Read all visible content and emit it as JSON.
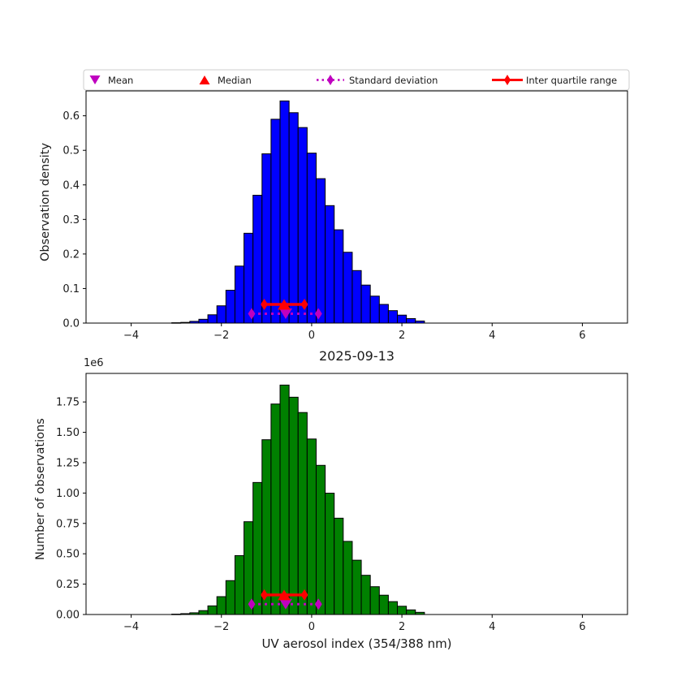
{
  "figure": {
    "background": "#ffffff"
  },
  "colors": {
    "blue": "#0000FF",
    "green": "#008000",
    "red": "#FF0000",
    "magenta": "#BF00BF",
    "bar_edge": "#000000",
    "legend_border": "#cccccc"
  },
  "legend": {
    "position": "top",
    "items": [
      {
        "label": "Mean",
        "marker": "triangle-down",
        "color": "#BF00BF",
        "line": "none"
      },
      {
        "label": "Median",
        "marker": "triangle-up",
        "color": "#FF0000",
        "line": "none"
      },
      {
        "label": "Standard deviation",
        "marker": "thin-diamond",
        "color": "#BF00BF",
        "line": "dotted"
      },
      {
        "label": "Inter quartile range",
        "marker": "thin-diamond",
        "color": "#FF0000",
        "line": "solid"
      }
    ]
  },
  "chart_data": [
    {
      "type": "bar",
      "subtype": "histogram",
      "ylabel": "Observation density",
      "bar_color": "#0000FF",
      "bar_edge_color": "#000000",
      "grid": false,
      "bin_width": 0.2,
      "bin_centers": [
        -3.0,
        -2.8,
        -2.6,
        -2.4,
        -2.2,
        -2.0,
        -1.8,
        -1.6,
        -1.4,
        -1.2,
        -1.0,
        -0.8,
        -0.6,
        -0.4,
        -0.2,
        0.0,
        0.2,
        0.4,
        0.6,
        0.8,
        1.0,
        1.2,
        1.4,
        1.6,
        1.8,
        2.0,
        2.2,
        2.4
      ],
      "values": [
        0.001,
        0.002,
        0.005,
        0.011,
        0.024,
        0.05,
        0.095,
        0.165,
        0.26,
        0.37,
        0.49,
        0.59,
        0.643,
        0.609,
        0.566,
        0.492,
        0.418,
        0.34,
        0.27,
        0.205,
        0.152,
        0.11,
        0.078,
        0.054,
        0.036,
        0.023,
        0.013,
        0.006
      ],
      "xlim": [
        -5,
        7
      ],
      "ylim": [
        0,
        0.672
      ],
      "xticks": [
        -4,
        -2,
        0,
        2,
        4,
        6
      ],
      "xtick_labels": [
        "−4",
        "−2",
        "0",
        "2",
        "4",
        "6"
      ],
      "yticks": [
        0.0,
        0.1,
        0.2,
        0.3,
        0.4,
        0.5,
        0.6
      ],
      "ytick_labels": [
        "0.0",
        "0.1",
        "0.2",
        "0.3",
        "0.4",
        "0.5",
        "0.6"
      ],
      "markers": {
        "mean": {
          "x": -0.575,
          "y": 0.027
        },
        "median": {
          "x": -0.61,
          "y": 0.054
        },
        "std_range": {
          "x_from": -1.33,
          "x_to": 0.15,
          "y": 0.027
        },
        "iqr_range": {
          "x_from": -1.05,
          "x_to": -0.16,
          "y": 0.054
        }
      }
    },
    {
      "type": "bar",
      "subtype": "histogram",
      "title": "2025-09-13",
      "ylabel": "Number of observations",
      "xlabel": "UV aerosol index (354/388 nm)",
      "y_offset_label": "1e6",
      "bar_color": "#008000",
      "bar_edge_color": "#000000",
      "grid": false,
      "bin_width": 0.2,
      "bin_centers": [
        -3.0,
        -2.8,
        -2.6,
        -2.4,
        -2.2,
        -2.0,
        -1.8,
        -1.6,
        -1.4,
        -1.2,
        -1.0,
        -0.8,
        -0.6,
        -0.4,
        -0.2,
        0.0,
        0.2,
        0.4,
        0.6,
        0.8,
        1.0,
        1.2,
        1.4,
        1.6,
        1.8,
        2.0,
        2.2,
        2.4
      ],
      "values": [
        3000,
        7000,
        14000,
        32000,
        71000,
        147000,
        279000,
        485000,
        764000,
        1087000,
        1439000,
        1733000,
        1889000,
        1789000,
        1663000,
        1445000,
        1228000,
        999000,
        793000,
        602000,
        447000,
        323000,
        229000,
        159000,
        106000,
        68000,
        38000,
        18000
      ],
      "xlim": [
        -5,
        7
      ],
      "ylim": [
        0,
        1985000
      ],
      "xticks": [
        -4,
        -2,
        0,
        2,
        4,
        6
      ],
      "xtick_labels": [
        "−4",
        "−2",
        "0",
        "2",
        "4",
        "6"
      ],
      "yticks": [
        0,
        250000,
        500000,
        750000,
        1000000,
        1250000,
        1500000,
        1750000
      ],
      "ytick_labels": [
        "0.00",
        "0.25",
        "0.50",
        "0.75",
        "1.00",
        "1.25",
        "1.50",
        "1.75"
      ],
      "markers": {
        "mean": {
          "x": -0.575,
          "y": 85000
        },
        "median": {
          "x": -0.61,
          "y": 161000
        },
        "std_range": {
          "x_from": -1.33,
          "x_to": 0.15,
          "y": 85000
        },
        "iqr_range": {
          "x_from": -1.05,
          "x_to": -0.16,
          "y": 161000
        }
      }
    }
  ]
}
